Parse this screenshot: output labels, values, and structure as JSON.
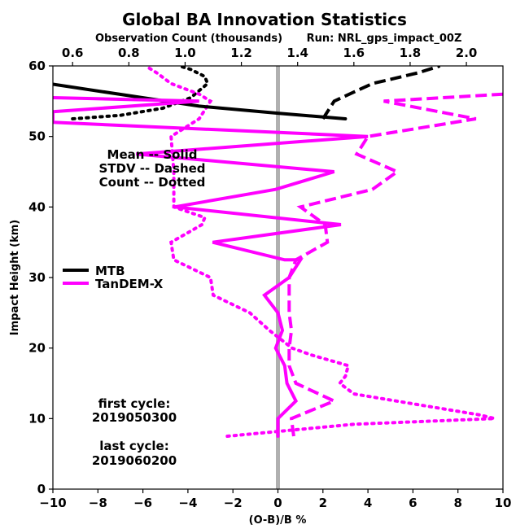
{
  "chart_data": {
    "type": "line",
    "title": "Global BA Innovation Statistics",
    "top_axis_label": "Observation Count (thousands)",
    "run_label": "Run: NRL_gps_impact_00Z",
    "xlabel": "(O-B)/B %",
    "ylabel": "Impact Height (km)",
    "xlim": [
      -10,
      10
    ],
    "ylim": [
      0,
      60
    ],
    "xticks": [
      -10,
      -8,
      -6,
      -4,
      -2,
      0,
      2,
      4,
      6,
      8,
      10
    ],
    "yticks": [
      0,
      10,
      20,
      30,
      40,
      50,
      60
    ],
    "top_xlim": [
      0.53,
      2.13
    ],
    "top_xticks": [
      "0.6",
      "0.8",
      "1.0",
      "1.2",
      "1.4",
      "1.6",
      "1.8",
      "2.0"
    ],
    "style_key": [
      "Mean -- Solid",
      "STDV -- Dashed",
      "Count -- Dotted"
    ],
    "cycle_notes": [
      "first cycle:",
      "2019050300",
      "last cycle:",
      "2019060200"
    ],
    "legend_placement": "center-left",
    "zero_line_color": "#b0b0b0",
    "series": [
      {
        "name": "MTB",
        "color": "#000000",
        "mean": [
          [
            3.0,
            52.5
          ],
          [
            0.0,
            53.3
          ],
          [
            -3.5,
            54.3
          ],
          [
            -7.5,
            56.2
          ],
          [
            -10.0,
            57.4
          ]
        ],
        "stdv": [
          [
            2.0,
            52.5
          ],
          [
            2.5,
            55.0
          ],
          [
            4.2,
            57.5
          ],
          [
            6.2,
            59.0
          ],
          [
            7.2,
            60.0
          ]
        ],
        "count": [
          [
            0.6,
            52.5
          ],
          [
            0.77,
            53.0
          ],
          [
            0.92,
            54.0
          ],
          [
            1.02,
            55.5
          ],
          [
            1.08,
            57.5
          ],
          [
            1.07,
            58.5
          ],
          [
            1.02,
            59.5
          ],
          [
            0.98,
            60.0
          ]
        ]
      },
      {
        "name": "TanDEM-X",
        "color": "#ff00ff",
        "mean": [
          [
            0.0,
            7.5
          ],
          [
            0.0,
            10.0
          ],
          [
            0.8,
            12.5
          ],
          [
            0.4,
            15.0
          ],
          [
            0.3,
            17.5
          ],
          [
            -0.1,
            20.0
          ],
          [
            0.2,
            22.5
          ],
          [
            0.0,
            25.0
          ],
          [
            -0.6,
            27.5
          ],
          [
            0.5,
            30.0
          ],
          [
            1.0,
            32.5
          ],
          [
            0.3,
            32.5
          ],
          [
            -2.9,
            35.0
          ],
          [
            2.8,
            37.5
          ],
          [
            -4.6,
            40.0
          ],
          [
            -0.1,
            42.5
          ],
          [
            2.5,
            45.0
          ],
          [
            -6.3,
            47.5
          ],
          [
            4.0,
            50.0
          ],
          [
            -10.0,
            52.0
          ],
          [
            -10.0,
            53.5
          ],
          [
            -3.5,
            55.0
          ],
          [
            -10.0,
            55.5
          ]
        ],
        "stdv": [
          [
            0.7,
            7.5
          ],
          [
            0.6,
            10.0
          ],
          [
            2.5,
            12.5
          ],
          [
            0.8,
            15.0
          ],
          [
            0.5,
            17.5
          ],
          [
            0.5,
            20.0
          ],
          [
            0.6,
            22.5
          ],
          [
            0.5,
            25.0
          ],
          [
            0.5,
            27.5
          ],
          [
            0.5,
            30.0
          ],
          [
            0.8,
            32.5
          ],
          [
            2.2,
            35.0
          ],
          [
            2.1,
            37.5
          ],
          [
            1.0,
            40.0
          ],
          [
            4.2,
            42.5
          ],
          [
            5.3,
            45.0
          ],
          [
            3.5,
            47.5
          ],
          [
            4.0,
            50.0
          ],
          [
            8.8,
            52.5
          ],
          [
            4.7,
            55.0
          ],
          [
            10.0,
            56.0
          ]
        ],
        "count": [
          [
            1.15,
            7.5
          ],
          [
            1.6,
            9.2
          ],
          [
            2.1,
            10.0
          ],
          [
            2.05,
            10.5
          ],
          [
            1.75,
            12.5
          ],
          [
            1.6,
            13.5
          ],
          [
            1.55,
            15.0
          ],
          [
            1.57,
            16.0
          ],
          [
            1.58,
            17.5
          ],
          [
            1.45,
            19.0
          ],
          [
            1.38,
            20.0
          ],
          [
            1.3,
            22.5
          ],
          [
            1.23,
            25.0
          ],
          [
            1.1,
            27.5
          ],
          [
            1.09,
            30.0
          ],
          [
            0.96,
            32.5
          ],
          [
            0.95,
            35.0
          ],
          [
            1.06,
            37.5
          ],
          [
            1.07,
            38.5
          ],
          [
            0.96,
            40.0
          ],
          [
            0.96,
            45.0
          ],
          [
            0.95,
            50.0
          ],
          [
            1.05,
            52.5
          ],
          [
            1.09,
            55.0
          ],
          [
            1.05,
            56.0
          ],
          [
            0.95,
            57.5
          ],
          [
            0.9,
            59.0
          ],
          [
            0.86,
            60.0
          ]
        ]
      }
    ]
  }
}
